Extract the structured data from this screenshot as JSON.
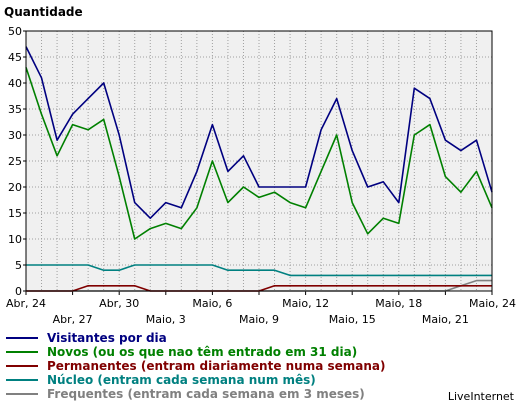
{
  "chart_data": {
    "type": "line",
    "ylabel": "Quantidade",
    "ylim": [
      0,
      50
    ],
    "yticks": [
      0,
      5,
      10,
      15,
      20,
      25,
      30,
      35,
      40,
      45,
      50
    ],
    "grid": true,
    "x_tick_labels": [
      {
        "label": "Abr, 24",
        "index": 0,
        "row": 1
      },
      {
        "label": "Abr, 27",
        "index": 3,
        "row": 2
      },
      {
        "label": "Abr, 30",
        "index": 6,
        "row": 1
      },
      {
        "label": "Maio, 3",
        "index": 9,
        "row": 2
      },
      {
        "label": "Maio, 6",
        "index": 12,
        "row": 1
      },
      {
        "label": "Maio, 9",
        "index": 15,
        "row": 2
      },
      {
        "label": "Maio, 12",
        "index": 18,
        "row": 1
      },
      {
        "label": "Maio, 15",
        "index": 21,
        "row": 2
      },
      {
        "label": "Maio, 18",
        "index": 24,
        "row": 1
      },
      {
        "label": "Maio, 21",
        "index": 27,
        "row": 2
      },
      {
        "label": "Maio, 24",
        "index": 30,
        "row": 1
      }
    ],
    "series": [
      {
        "name": "Visitantes por dia",
        "color": "#000080",
        "values": [
          47,
          41,
          29,
          34,
          37,
          40,
          30,
          17,
          14,
          17,
          16,
          23,
          32,
          23,
          26,
          20,
          20,
          20,
          20,
          31,
          37,
          27,
          20,
          21,
          17,
          39,
          37,
          29,
          27,
          29,
          19
        ]
      },
      {
        "name": "Novos (ou os que nao têm entrado em 31 dia)",
        "color": "#008000",
        "values": [
          43,
          34,
          26,
          32,
          31,
          33,
          22,
          10,
          12,
          13,
          12,
          16,
          25,
          17,
          20,
          18,
          19,
          17,
          16,
          23,
          30,
          17,
          11,
          14,
          13,
          30,
          32,
          22,
          19,
          23,
          16
        ]
      },
      {
        "name": "Permanentes (entram diariamente numa semana)",
        "color": "#800000",
        "values": [
          0,
          0,
          0,
          0,
          1,
          1,
          1,
          1,
          0,
          0,
          0,
          0,
          0,
          0,
          0,
          0,
          1,
          1,
          1,
          1,
          1,
          1,
          1,
          1,
          1,
          1,
          1,
          1,
          1,
          1,
          1
        ]
      },
      {
        "name": "Núcleo (entram cada semana num mês)",
        "color": "#008080",
        "values": [
          5,
          5,
          5,
          5,
          5,
          4,
          4,
          5,
          5,
          5,
          5,
          5,
          5,
          4,
          4,
          4,
          4,
          3,
          3,
          3,
          3,
          3,
          3,
          3,
          3,
          3,
          3,
          3,
          3,
          3,
          3
        ]
      },
      {
        "name": "Frequentes (entram cada semana em 3 meses)",
        "color": "#808080",
        "values": [
          0,
          0,
          0,
          0,
          0,
          0,
          0,
          0,
          0,
          0,
          0,
          0,
          0,
          0,
          0,
          0,
          0,
          0,
          0,
          0,
          0,
          0,
          0,
          0,
          0,
          0,
          0,
          0,
          1,
          2,
          2
        ]
      }
    ]
  },
  "brand": "LiveInternet"
}
